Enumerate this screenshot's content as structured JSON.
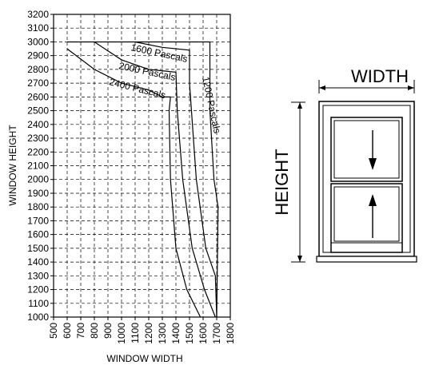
{
  "chart_data": {
    "type": "line",
    "xlabel": "WINDOW WIDTH",
    "ylabel": "WINDOW HEIGHT",
    "xlim": [
      500,
      1800
    ],
    "ylim": [
      1000,
      3200
    ],
    "x_ticks": [
      500,
      600,
      700,
      800,
      900,
      1000,
      1100,
      1200,
      1300,
      1400,
      1500,
      1600,
      1700,
      1800
    ],
    "y_ticks": [
      1000,
      1100,
      1200,
      1300,
      1400,
      1500,
      1600,
      1700,
      1800,
      1900,
      2000,
      2100,
      2200,
      2300,
      2400,
      2500,
      2600,
      2700,
      2800,
      2900,
      3000,
      3100,
      3200
    ],
    "grid": true,
    "series": [
      {
        "name": "1200 Pascals",
        "points": [
          [
            600,
            3000
          ],
          [
            1100,
            3000
          ],
          [
            1450,
            3000
          ],
          [
            1650,
            3000
          ],
          [
            1650,
            2500
          ],
          [
            1680,
            2000
          ],
          [
            1710,
            1800
          ],
          [
            1700,
            1000
          ]
        ]
      },
      {
        "name": "1600 Pascals",
        "points": [
          [
            1100,
            3000
          ],
          [
            1300,
            2960
          ],
          [
            1500,
            2940
          ],
          [
            1500,
            2700
          ],
          [
            1550,
            2000
          ],
          [
            1620,
            1500
          ],
          [
            1690,
            1300
          ],
          [
            1700,
            1000
          ]
        ]
      },
      {
        "name": "2000 Pascals",
        "points": [
          [
            800,
            3000
          ],
          [
            1000,
            2870
          ],
          [
            1200,
            2800
          ],
          [
            1400,
            2780
          ],
          [
            1410,
            2500
          ],
          [
            1450,
            2000
          ],
          [
            1520,
            1500
          ],
          [
            1610,
            1200
          ],
          [
            1690,
            1000
          ]
        ]
      },
      {
        "name": "2400 Pascals",
        "points": [
          [
            600,
            2950
          ],
          [
            800,
            2800
          ],
          [
            1000,
            2700
          ],
          [
            1200,
            2650
          ],
          [
            1300,
            2600
          ],
          [
            1360,
            2600
          ],
          [
            1350,
            2500
          ],
          [
            1360,
            2000
          ],
          [
            1400,
            1500
          ],
          [
            1480,
            1200
          ],
          [
            1580,
            1000
          ]
        ]
      }
    ]
  },
  "diagram": {
    "width_label": "WIDTH",
    "height_label": "HEIGHT"
  }
}
